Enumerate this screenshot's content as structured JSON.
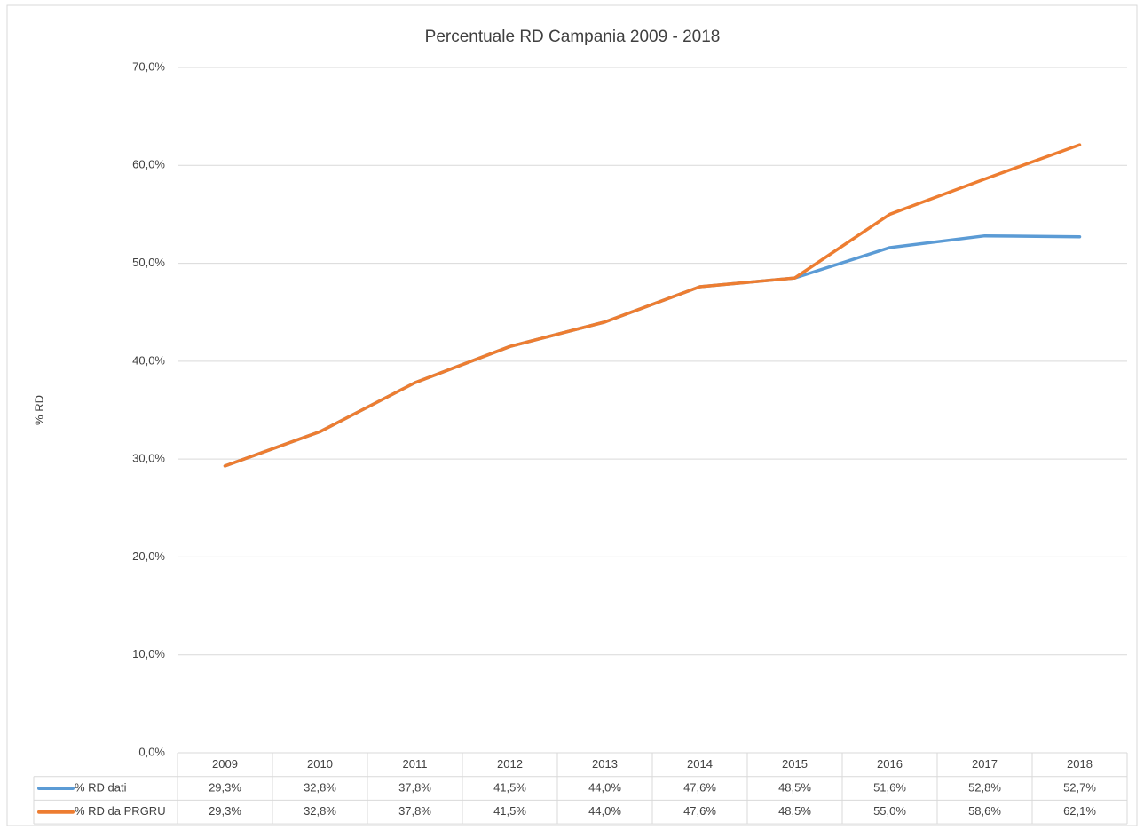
{
  "chart_data": {
    "type": "line",
    "title": "Percentuale RD Campania 2009 - 2018",
    "y_label": "% RD",
    "categories": [
      "2009",
      "2010",
      "2011",
      "2012",
      "2013",
      "2014",
      "2015",
      "2016",
      "2017",
      "2018"
    ],
    "series": [
      {
        "name": "% RD dati",
        "color": "#5b9bd5",
        "values": [
          29.3,
          32.8,
          37.8,
          41.5,
          44.0,
          47.6,
          48.5,
          51.6,
          52.8,
          52.7
        ],
        "value_labels": [
          "29,3%",
          "32,8%",
          "37,8%",
          "41,5%",
          "44,0%",
          "47,6%",
          "48,5%",
          "51,6%",
          "52,8%",
          "52,7%"
        ]
      },
      {
        "name": "% RD da PRGRU",
        "color": "#ed7d31",
        "values": [
          29.3,
          32.8,
          37.8,
          41.5,
          44.0,
          47.6,
          48.5,
          55.0,
          58.6,
          62.1
        ],
        "value_labels": [
          "29,3%",
          "32,8%",
          "37,8%",
          "41,5%",
          "44,0%",
          "47,6%",
          "48,5%",
          "55,0%",
          "58,6%",
          "62,1%"
        ]
      }
    ],
    "ylim": [
      0,
      70
    ],
    "yticks": [
      {
        "value": 0,
        "label": "0,0%"
      },
      {
        "value": 10,
        "label": "10,0%"
      },
      {
        "value": 20,
        "label": "20,0%"
      },
      {
        "value": 30,
        "label": "30,0%"
      },
      {
        "value": 40,
        "label": "40,0%"
      },
      {
        "value": 50,
        "label": "50,0%"
      },
      {
        "value": 60,
        "label": "60,0%"
      },
      {
        "value": 70,
        "label": "70,0%"
      }
    ],
    "grid": true
  }
}
